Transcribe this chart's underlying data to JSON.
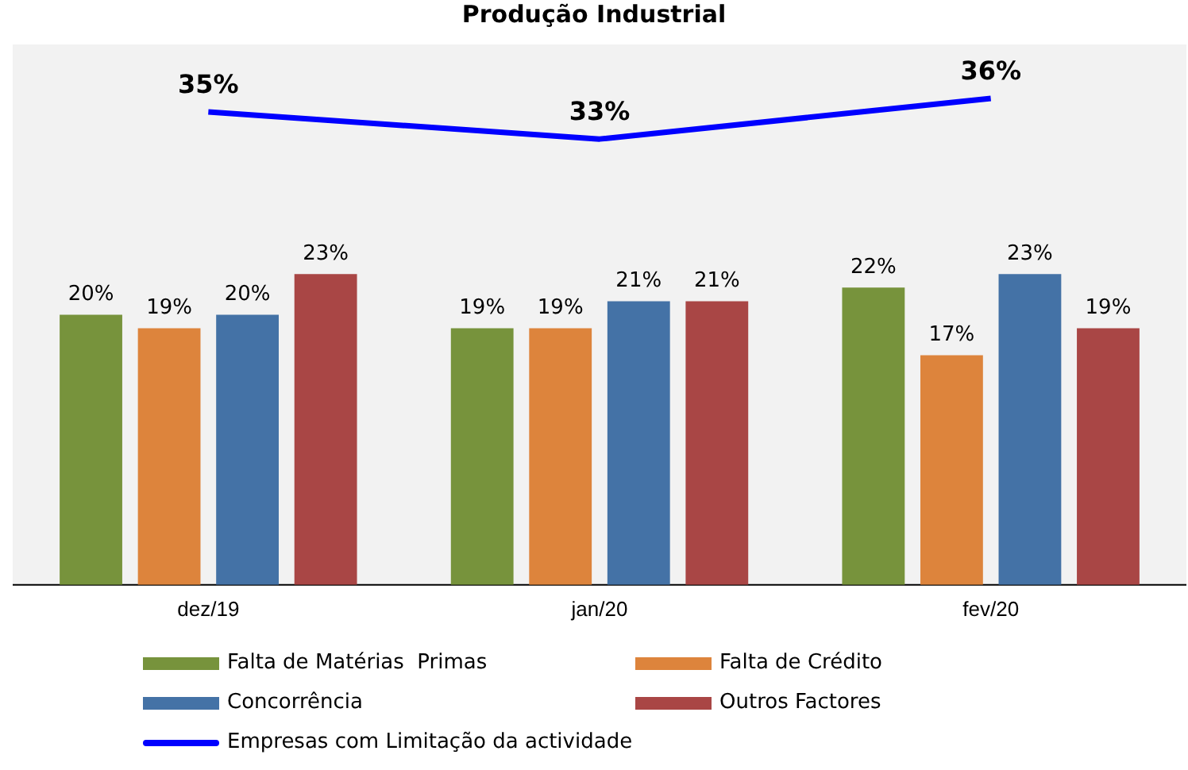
{
  "chart_data": {
    "type": "bar",
    "title": "Produção Industrial",
    "categories": [
      "dez/19",
      "jan/20",
      "fev/20"
    ],
    "series": [
      {
        "name": "Falta de Matérias  Primas",
        "color": "#77933c",
        "values": [
          20,
          19,
          22
        ],
        "value_labels": [
          "20%",
          "19%",
          "22%"
        ]
      },
      {
        "name": "Falta de Crédito",
        "color": "#dd843c",
        "values": [
          19,
          19,
          17
        ],
        "value_labels": [
          "19%",
          "19%",
          "17%"
        ]
      },
      {
        "name": "Concorrência",
        "color": "#4472a6",
        "values": [
          20,
          21,
          23
        ],
        "value_labels": [
          "20%",
          "21%",
          "23%"
        ]
      },
      {
        "name": "Outros Factores",
        "color": "#a94645",
        "values": [
          23,
          21,
          19
        ],
        "value_labels": [
          "23%",
          "21%",
          "19%"
        ]
      },
      {
        "name": "Empresas com Limitação da actividade",
        "type": "line",
        "color": "#0000ff",
        "values": [
          35,
          33,
          36
        ],
        "value_labels": [
          "35%",
          "33%",
          "36%"
        ]
      }
    ],
    "legend": "bottom",
    "grid": false,
    "marker": "none",
    "tick_labels": "x"
  }
}
